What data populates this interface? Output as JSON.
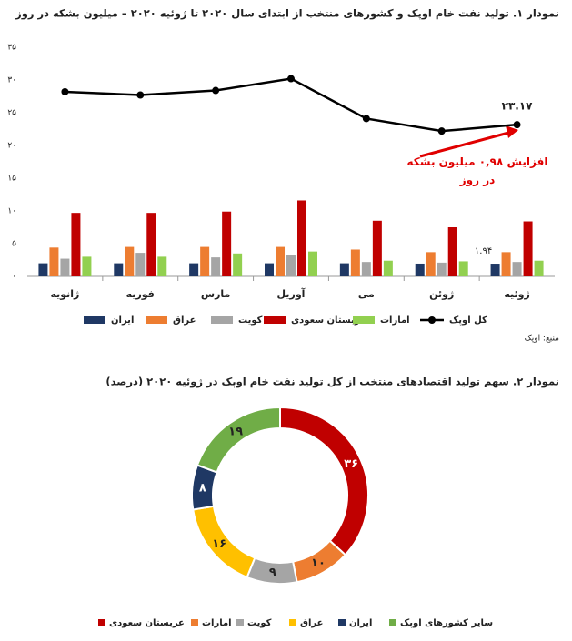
{
  "chart_data": [
    {
      "type": "bar",
      "title": "نمودار ۱. تولید نفت خام اوپک و کشورهای منتخب از ابتدای سال ۲۰۲۰ تا ژوئیه ۲۰۲۰ – میلیون بشکه در روز",
      "categories": [
        "ژانویه",
        "فوریه",
        "مارس",
        "آوریل",
        "می",
        "ژوئن",
        "ژوئیه"
      ],
      "series": [
        {
          "name": "ایران",
          "color": "#1f3864",
          "type": "bar",
          "values": [
            2.0,
            2.0,
            2.0,
            2.0,
            2.0,
            1.95,
            1.94
          ],
          "value_labels": [
            null,
            null,
            null,
            null,
            null,
            null,
            "۱.۹۴"
          ]
        },
        {
          "name": "عراق",
          "color": "#ed7d31",
          "type": "bar",
          "values": [
            4.4,
            4.5,
            4.5,
            4.5,
            4.1,
            3.7,
            3.7
          ]
        },
        {
          "name": "کویت",
          "color": "#a5a5a5",
          "type": "bar",
          "values": [
            2.7,
            3.6,
            2.9,
            3.2,
            2.2,
            2.1,
            2.2
          ]
        },
        {
          "name": "عربستان سعودی",
          "color": "#c00000",
          "type": "bar",
          "values": [
            9.7,
            9.7,
            9.9,
            11.6,
            8.5,
            7.5,
            8.4
          ]
        },
        {
          "name": "امارات",
          "color": "#92d050",
          "type": "bar",
          "values": [
            3.0,
            3.0,
            3.5,
            3.8,
            2.4,
            2.3,
            2.4
          ]
        },
        {
          "name": "کل اوپک",
          "color": "#000000",
          "type": "line",
          "values": [
            28.2,
            27.7,
            28.4,
            30.2,
            24.1,
            22.2,
            23.17
          ],
          "value_labels": [
            null,
            null,
            null,
            null,
            null,
            null,
            "۲۳.۱۷"
          ]
        }
      ],
      "ylim": [
        0,
        35
      ],
      "yticks": [
        {
          "value": 0,
          "label": "۰"
        },
        {
          "value": 5,
          "label": "۵"
        },
        {
          "value": 10,
          "label": "۱۰"
        },
        {
          "value": 15,
          "label": "۱۵"
        },
        {
          "value": 20,
          "label": "۲۰"
        },
        {
          "value": 25,
          "label": "۲۵"
        },
        {
          "value": 30,
          "label": "۳۰"
        },
        {
          "value": 35,
          "label": "۳۵"
        }
      ],
      "grid": false,
      "annotation": "افزایش ۰,۹۸ میلیون بشکه در روز",
      "source": "منبع: اوپک"
    },
    {
      "type": "pie",
      "donut": true,
      "title": "نمودار ۲. سهم تولید اقتصادهای منتخب از کل تولید نفت خام اوپک در ژوئیه ۲۰۲۰ (درصد)",
      "categories": [
        "عربستان سعودی",
        "امارات",
        "کویت",
        "عراق",
        "ایران",
        "سایر کشورهای اوپک"
      ],
      "values": [
        36,
        10,
        9,
        16,
        8,
        19
      ],
      "value_labels": [
        "۳۶",
        "۱۰",
        "۹",
        "۱۶",
        "۸",
        "۱۹"
      ],
      "colors": [
        "#c00000",
        "#ed7d31",
        "#a5a5a5",
        "#ffc000",
        "#1f3864",
        "#70ad47"
      ]
    }
  ]
}
